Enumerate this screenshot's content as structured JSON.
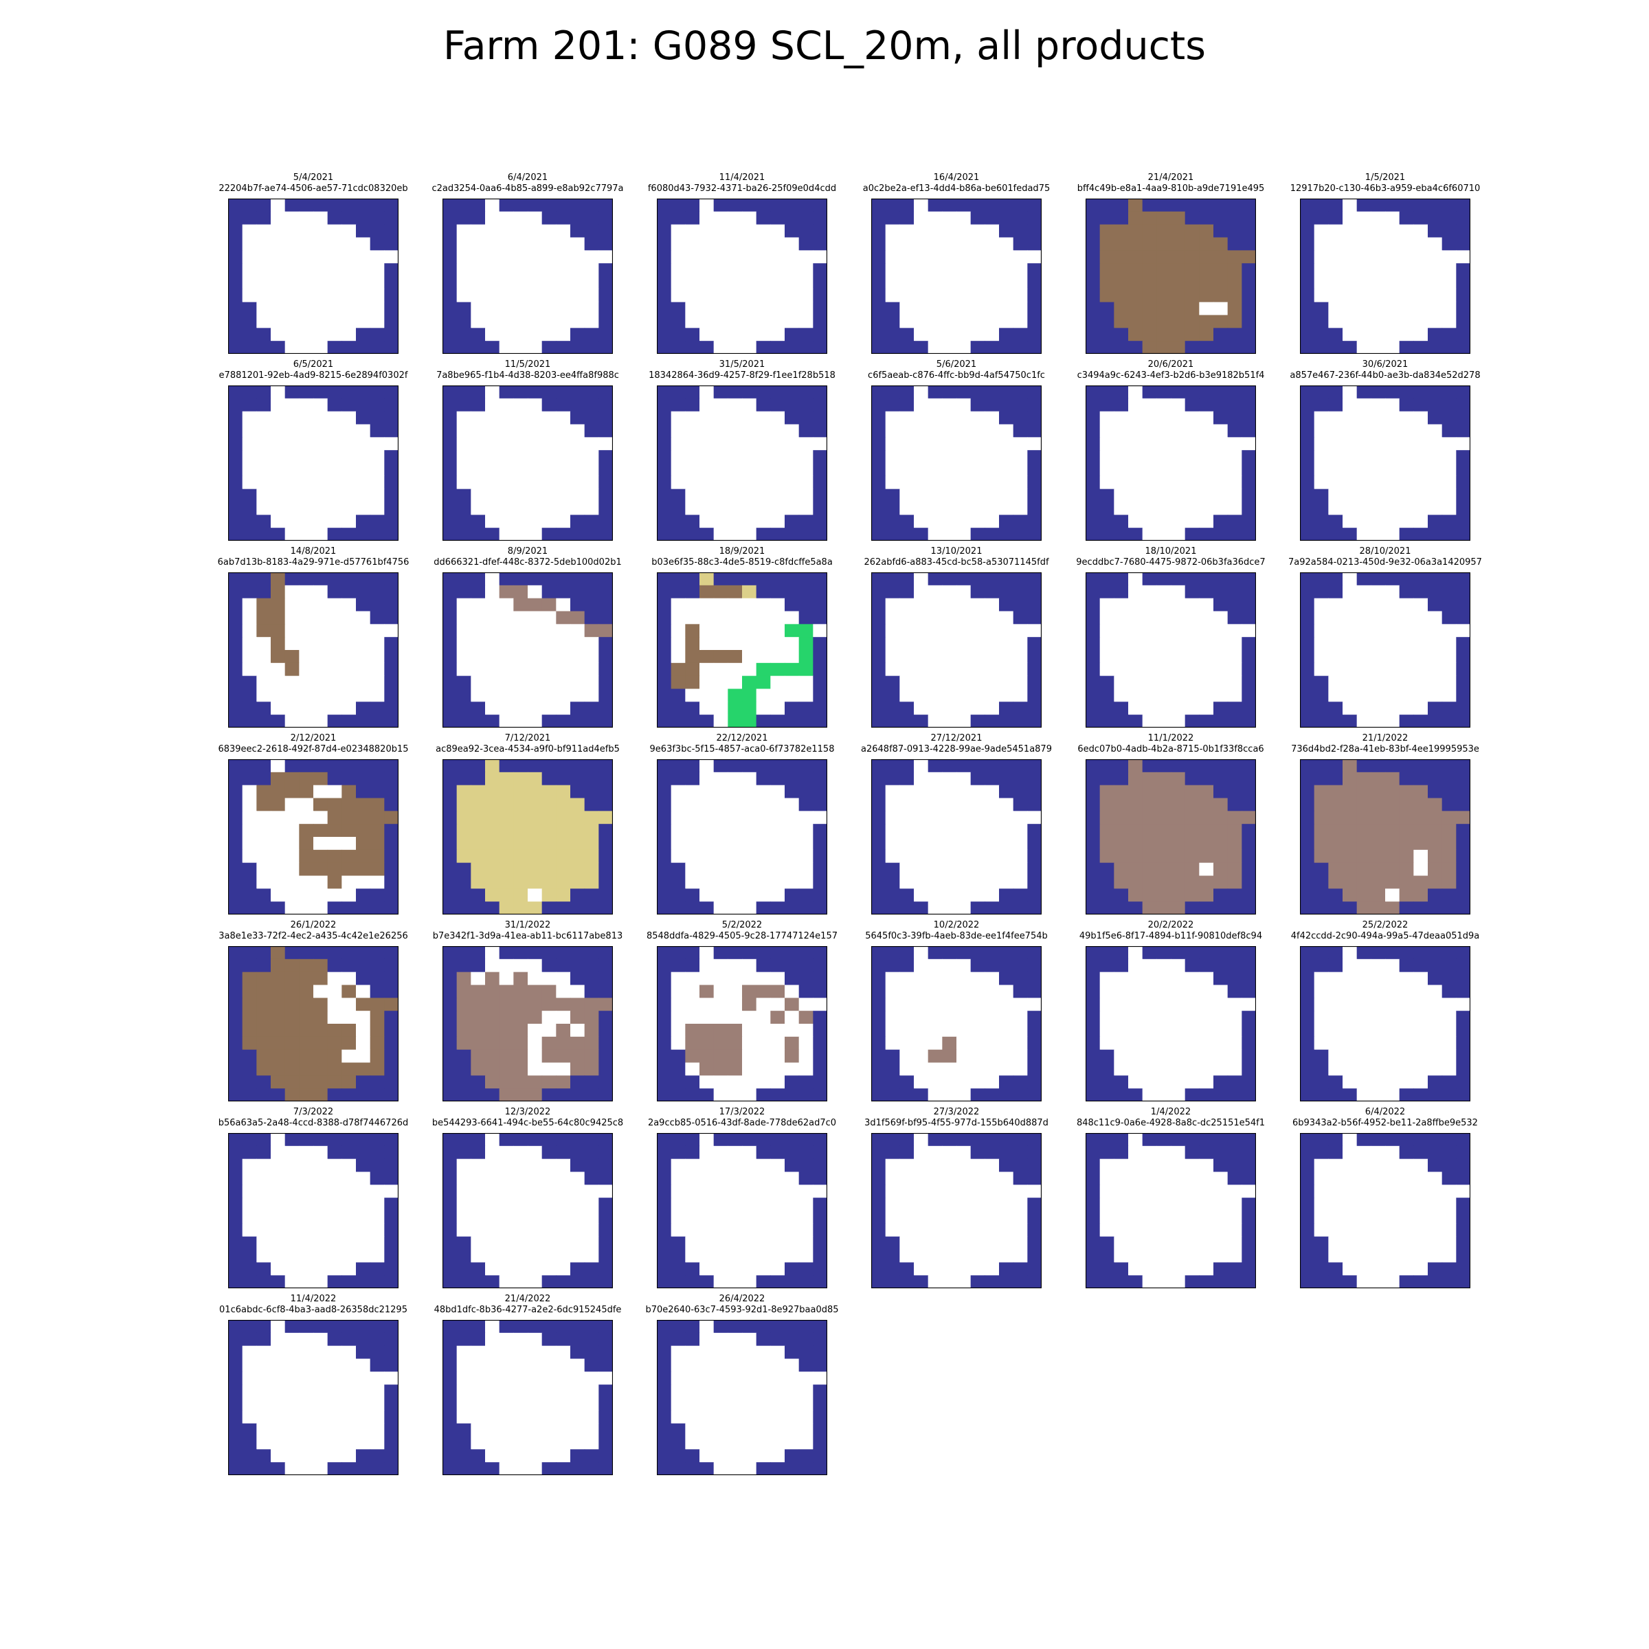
{
  "title": "Farm 201: G089 SCL_20m, all products",
  "chart_data": {
    "type": "heatmap",
    "title": "Farm 201: G089 SCL_20m, all products",
    "grid": false,
    "colors": {
      "N": "#363696",
      "W": "#ffffff",
      "B": "#8f7055",
      "R": "#9c7f76",
      "Y": "#dcd089",
      "G": "#26d46b"
    },
    "base_mask": [
      "NNNWNNNNNNNN",
      "NNNWWWWNNNNN",
      "NWWWWWWWWNNN",
      "NWWWWWWWWWNN",
      "NWWWWWWWWWWW",
      "NWWWWWWWWWWN",
      "NWWWWWWWWWWN",
      "NWWWWWWWWWWN",
      "NNWWWWWWWWWN",
      "NNWWWWWWWWWN",
      "NNNWWWWWWNNN",
      "NNNNWWWNNNNN"
    ],
    "panels": [
      {
        "date": "5/4/2021",
        "id": "22204b7f-ae74-4506-ae57-71cdc08320eb"
      },
      {
        "date": "6/4/2021",
        "id": "c2ad3254-0aa6-4b85-a899-e8ab92c7797a"
      },
      {
        "date": "11/4/2021",
        "id": "f6080d43-7932-4371-ba26-25f09e0d4cdd"
      },
      {
        "date": "16/4/2021",
        "id": "a0c2be2a-ef13-4dd4-b86a-be601fedad75"
      },
      {
        "date": "21/4/2021",
        "id": "bff4c49b-e8a1-4aa9-810b-a9de7191e495",
        "fill": "B",
        "holes": [
          [
            8,
            8
          ],
          [
            8,
            9
          ]
        ]
      },
      {
        "date": "1/5/2021",
        "id": "12917b20-c130-46b3-a959-eba4c6f60710"
      },
      {
        "date": "6/5/2021",
        "id": "e7881201-92eb-4ad9-8215-6e2894f0302f"
      },
      {
        "date": "11/5/2021",
        "id": "7a8be965-f1b4-4d38-8203-ee4ffa8f988c"
      },
      {
        "date": "31/5/2021",
        "id": "18342864-36d9-4257-8f29-f1ee1f28b518"
      },
      {
        "date": "5/6/2021",
        "id": "c6f5aeab-c876-4ffc-bb9d-4af54750c1fc"
      },
      {
        "date": "20/6/2021",
        "id": "c3494a9c-6243-4ef3-b2d6-b3e9182b51f4"
      },
      {
        "date": "30/6/2021",
        "id": "a857e467-236f-44b0-ae3b-da834e52d278"
      },
      {
        "date": "14/8/2021",
        "id": "6ab7d13b-8183-4a29-971e-d57761bf4756",
        "cells": [
          [
            0,
            3,
            "B"
          ],
          [
            1,
            3,
            "B"
          ],
          [
            2,
            2,
            "B"
          ],
          [
            2,
            3,
            "B"
          ],
          [
            3,
            2,
            "B"
          ],
          [
            3,
            3,
            "B"
          ],
          [
            4,
            2,
            "B"
          ],
          [
            4,
            3,
            "B"
          ],
          [
            5,
            3,
            "B"
          ],
          [
            6,
            3,
            "B"
          ],
          [
            6,
            4,
            "B"
          ],
          [
            7,
            4,
            "B"
          ]
        ]
      },
      {
        "date": "8/9/2021",
        "id": "dd666321-dfef-448c-8372-5deb100d02b1",
        "cells": [
          [
            1,
            4,
            "R"
          ],
          [
            1,
            5,
            "R"
          ],
          [
            2,
            5,
            "R"
          ],
          [
            2,
            6,
            "R"
          ],
          [
            2,
            7,
            "R"
          ],
          [
            3,
            8,
            "R"
          ],
          [
            3,
            9,
            "R"
          ],
          [
            4,
            10,
            "R"
          ],
          [
            4,
            11,
            "R"
          ]
        ]
      },
      {
        "date": "18/9/2021",
        "id": "b03e6f35-88c3-4de5-8519-c8fdcffe5a8a",
        "cells": [
          [
            0,
            3,
            "Y"
          ],
          [
            1,
            6,
            "Y"
          ],
          [
            1,
            3,
            "B"
          ],
          [
            1,
            4,
            "B"
          ],
          [
            1,
            5,
            "B"
          ],
          [
            4,
            9,
            "G"
          ],
          [
            4,
            10,
            "G"
          ],
          [
            5,
            10,
            "G"
          ],
          [
            6,
            10,
            "G"
          ],
          [
            7,
            10,
            "G"
          ],
          [
            7,
            7,
            "G"
          ],
          [
            7,
            8,
            "G"
          ],
          [
            7,
            9,
            "G"
          ],
          [
            8,
            6,
            "G"
          ],
          [
            8,
            7,
            "G"
          ],
          [
            9,
            5,
            "G"
          ],
          [
            9,
            6,
            "G"
          ],
          [
            10,
            5,
            "G"
          ],
          [
            10,
            6,
            "G"
          ],
          [
            11,
            5,
            "G"
          ],
          [
            11,
            6,
            "G"
          ],
          [
            4,
            2,
            "B"
          ],
          [
            5,
            2,
            "B"
          ],
          [
            6,
            2,
            "B"
          ],
          [
            6,
            3,
            "B"
          ],
          [
            6,
            4,
            "B"
          ],
          [
            6,
            5,
            "B"
          ],
          [
            7,
            1,
            "B"
          ],
          [
            7,
            2,
            "B"
          ],
          [
            8,
            1,
            "B"
          ],
          [
            8,
            2,
            "B"
          ]
        ]
      },
      {
        "date": "13/10/2021",
        "id": "262abfd6-a883-45cd-bc58-a53071145fdf"
      },
      {
        "date": "18/10/2021",
        "id": "9ecddbc7-7680-4475-9872-06b3fa36dce7"
      },
      {
        "date": "28/10/2021",
        "id": "7a92a584-0213-450d-9e32-06a3a1420957"
      },
      {
        "date": "2/12/2021",
        "id": "6839eec2-2618-492f-87d4-e02348820b15",
        "cells": [
          [
            1,
            3,
            "B"
          ],
          [
            1,
            4,
            "B"
          ],
          [
            1,
            5,
            "B"
          ],
          [
            1,
            6,
            "B"
          ],
          [
            2,
            2,
            "B"
          ],
          [
            2,
            3,
            "B"
          ],
          [
            2,
            4,
            "B"
          ],
          [
            2,
            5,
            "B"
          ],
          [
            2,
            8,
            "B"
          ],
          [
            3,
            2,
            "B"
          ],
          [
            3,
            3,
            "B"
          ],
          [
            3,
            6,
            "B"
          ],
          [
            3,
            7,
            "B"
          ],
          [
            3,
            8,
            "B"
          ],
          [
            3,
            9,
            "B"
          ],
          [
            3,
            10,
            "B"
          ],
          [
            4,
            7,
            "B"
          ],
          [
            4,
            8,
            "B"
          ],
          [
            4,
            9,
            "B"
          ],
          [
            4,
            10,
            "B"
          ],
          [
            4,
            11,
            "B"
          ],
          [
            5,
            5,
            "B"
          ],
          [
            5,
            6,
            "B"
          ],
          [
            5,
            7,
            "B"
          ],
          [
            5,
            8,
            "B"
          ],
          [
            5,
            9,
            "B"
          ],
          [
            5,
            10,
            "B"
          ],
          [
            6,
            5,
            "B"
          ],
          [
            6,
            9,
            "B"
          ],
          [
            6,
            10,
            "B"
          ],
          [
            7,
            5,
            "B"
          ],
          [
            7,
            6,
            "B"
          ],
          [
            7,
            7,
            "B"
          ],
          [
            7,
            8,
            "B"
          ],
          [
            7,
            9,
            "B"
          ],
          [
            7,
            10,
            "B"
          ],
          [
            8,
            5,
            "B"
          ],
          [
            8,
            6,
            "B"
          ],
          [
            8,
            7,
            "B"
          ],
          [
            8,
            8,
            "B"
          ],
          [
            8,
            9,
            "B"
          ],
          [
            8,
            10,
            "B"
          ],
          [
            9,
            7,
            "B"
          ]
        ]
      },
      {
        "date": "7/12/2021",
        "id": "ac89ea92-3cea-4534-a9f0-bf911ad4efb5",
        "fill": "Y",
        "holes": [
          [
            10,
            6
          ]
        ]
      },
      {
        "date": "22/12/2021",
        "id": "9e63f3bc-5f15-4857-aca0-6f73782e1158"
      },
      {
        "date": "27/12/2021",
        "id": "a2648f87-0913-4228-99ae-9ade5451a879"
      },
      {
        "date": "11/1/2022",
        "id": "6edc07b0-4adb-4b2a-8715-0b1f33f8cca6",
        "fill": "R",
        "holes": [
          [
            8,
            8
          ]
        ]
      },
      {
        "date": "21/1/2022",
        "id": "736d4bd2-f28a-41eb-83bf-4ee19995953e",
        "fill": "R",
        "holes": [
          [
            7,
            8
          ],
          [
            8,
            8
          ],
          [
            10,
            6
          ]
        ]
      },
      {
        "date": "26/1/2022",
        "id": "3a8e1e33-72f2-4ec2-a435-4c42e1e26256",
        "fill": "B",
        "holes": [
          [
            2,
            7
          ],
          [
            2,
            8
          ],
          [
            3,
            6
          ],
          [
            3,
            7
          ],
          [
            3,
            9
          ],
          [
            4,
            7
          ],
          [
            4,
            8
          ],
          [
            5,
            7
          ],
          [
            5,
            8
          ],
          [
            5,
            9
          ],
          [
            6,
            9
          ],
          [
            7,
            9
          ],
          [
            8,
            8
          ],
          [
            8,
            9
          ]
        ]
      },
      {
        "date": "31/1/2022",
        "id": "b7e342f1-3d9a-41ea-ab11-bc6117abe813",
        "fill": "R",
        "holes": [
          [
            0,
            3
          ],
          [
            1,
            3
          ],
          [
            1,
            4
          ],
          [
            1,
            5
          ],
          [
            1,
            6
          ],
          [
            2,
            2
          ],
          [
            2,
            4
          ],
          [
            2,
            6
          ],
          [
            2,
            7
          ],
          [
            2,
            8
          ],
          [
            3,
            8
          ],
          [
            3,
            9
          ],
          [
            5,
            7
          ],
          [
            5,
            8
          ],
          [
            6,
            6
          ],
          [
            6,
            7
          ],
          [
            6,
            9
          ],
          [
            7,
            6
          ],
          [
            8,
            6
          ],
          [
            9,
            6
          ],
          [
            9,
            7
          ],
          [
            9,
            8
          ]
        ]
      },
      {
        "date": "5/2/2022",
        "id": "8548ddfa-4829-4505-9c28-17747124e157",
        "cells": [
          [
            3,
            3,
            "R"
          ],
          [
            3,
            6,
            "R"
          ],
          [
            3,
            7,
            "R"
          ],
          [
            3,
            8,
            "R"
          ],
          [
            4,
            6,
            "R"
          ],
          [
            4,
            9,
            "R"
          ],
          [
            5,
            8,
            "R"
          ],
          [
            5,
            10,
            "R"
          ],
          [
            6,
            2,
            "R"
          ],
          [
            6,
            3,
            "R"
          ],
          [
            6,
            4,
            "R"
          ],
          [
            6,
            5,
            "R"
          ],
          [
            7,
            2,
            "R"
          ],
          [
            7,
            3,
            "R"
          ],
          [
            7,
            4,
            "R"
          ],
          [
            7,
            5,
            "R"
          ],
          [
            7,
            9,
            "R"
          ],
          [
            8,
            2,
            "R"
          ],
          [
            8,
            3,
            "R"
          ],
          [
            8,
            4,
            "R"
          ],
          [
            8,
            5,
            "R"
          ],
          [
            8,
            9,
            "R"
          ],
          [
            9,
            3,
            "R"
          ],
          [
            9,
            4,
            "R"
          ],
          [
            9,
            5,
            "R"
          ]
        ]
      },
      {
        "date": "10/2/2022",
        "id": "5645f0c3-39fb-4aeb-83de-ee1f4fee754b",
        "cells": [
          [
            7,
            5,
            "R"
          ],
          [
            8,
            4,
            "R"
          ],
          [
            8,
            5,
            "R"
          ]
        ]
      },
      {
        "date": "20/2/2022",
        "id": "49b1f5e6-8f17-4894-b11f-90810def8c94"
      },
      {
        "date": "25/2/2022",
        "id": "4f42ccdd-2c90-494a-99a5-47deaa051d9a"
      },
      {
        "date": "7/3/2022",
        "id": "b56a63a5-2a48-4ccd-8388-d78f7446726d"
      },
      {
        "date": "12/3/2022",
        "id": "be544293-6641-494c-be55-64c80c9425c8"
      },
      {
        "date": "17/3/2022",
        "id": "2a9ccb85-0516-43df-8ade-778de62ad7c0"
      },
      {
        "date": "27/3/2022",
        "id": "3d1f569f-bf95-4f55-977d-155b640d887d"
      },
      {
        "date": "1/4/2022",
        "id": "848c11c9-0a6e-4928-8a8c-dc25151e54f1"
      },
      {
        "date": "6/4/2022",
        "id": "6b9343a2-b56f-4952-be11-2a8ffbe9e532"
      },
      {
        "date": "11/4/2022",
        "id": "01c6abdc-6cf8-4ba3-aad8-26358dc21295"
      },
      {
        "date": "21/4/2022",
        "id": "48bd1dfc-8b36-4277-a2e2-6dc915245dfe"
      },
      {
        "date": "26/4/2022",
        "id": "b70e2640-63c7-4593-92d1-8e927baa0d85"
      }
    ]
  }
}
